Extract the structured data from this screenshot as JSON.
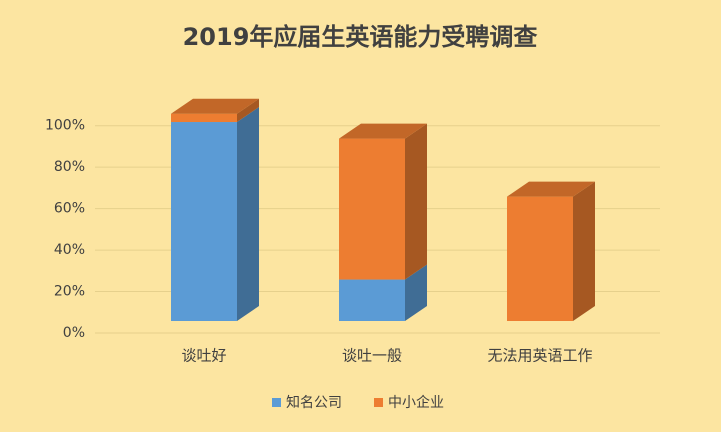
{
  "chart_data": {
    "type": "bar3d_stacked",
    "title": "2019年应届生英语能力受聘调查",
    "categories": [
      "谈吐好",
      "谈吐一般",
      "无法用英语工作"
    ],
    "series": [
      {
        "name": "知名公司",
        "color": "#5b9bd5",
        "values": [
          96,
          20,
          0
        ]
      },
      {
        "name": "中小企业",
        "color": "#ed7d31",
        "values": [
          4,
          68,
          60
        ]
      }
    ],
    "ylim": [
      0,
      110
    ],
    "yticks": [
      {
        "value": 0,
        "label": "0%"
      },
      {
        "value": 20,
        "label": "20%"
      },
      {
        "value": 40,
        "label": "40%"
      },
      {
        "value": 60,
        "label": "60%"
      },
      {
        "value": 80,
        "label": "80%"
      },
      {
        "value": 100,
        "label": "100%"
      }
    ],
    "grid": true,
    "legend": "bottom"
  }
}
